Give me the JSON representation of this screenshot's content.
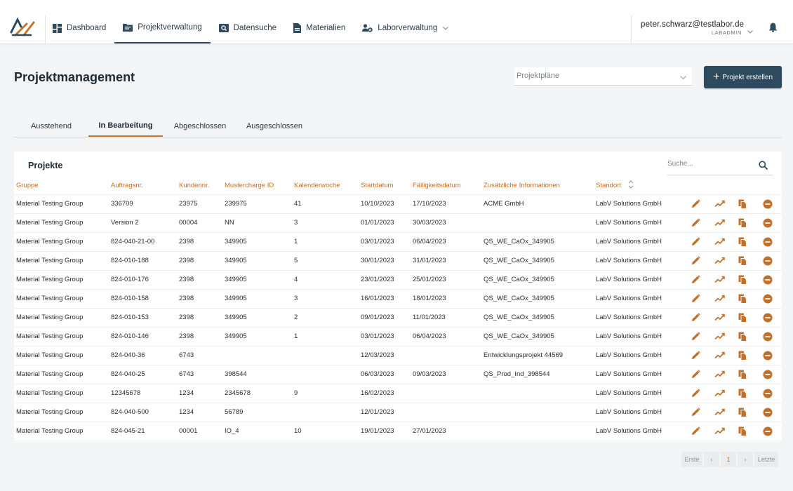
{
  "nav": {
    "items": [
      {
        "label": "Dashboard",
        "icon": "dashboard-icon"
      },
      {
        "label": "Projektverwaltung",
        "icon": "folder-icon",
        "active": true
      },
      {
        "label": "Datensuche",
        "icon": "search-box-icon"
      },
      {
        "label": "Materialien",
        "icon": "document-icon"
      },
      {
        "label": "Laborverwaltung",
        "icon": "users-gear-icon"
      }
    ]
  },
  "user": {
    "email": "peter.schwarz@testlabor.de",
    "role": "LABADMIN"
  },
  "page": {
    "title": "Projektmanagement"
  },
  "plan_select": {
    "placeholder": "Projektpläne"
  },
  "create_button": {
    "label": "Projekt erstellen"
  },
  "tabs": [
    "Ausstehend",
    "In Bearbeitung",
    "Abgeschlossen",
    "Ausgeschlossen"
  ],
  "active_tab": "In Bearbeitung",
  "projects": {
    "title": "Projekte",
    "search_placeholder": "Suche...",
    "columns": [
      "Gruppe",
      "Auftragsnr.",
      "Kundennr.",
      "Mustercharge ID",
      "Kalenderwoche",
      "Startdatum",
      "Fälligkeitsdatum",
      "Zusätzliche Informationen",
      "Standort"
    ],
    "rows": [
      [
        "Material Testing Group",
        "336709",
        "23975",
        "239975",
        "41",
        "10/10/2023",
        "17/10/2023",
        "ACME GmbH",
        "LabV Solutions GmbH"
      ],
      [
        "Material Testing Group",
        "Version 2",
        "00004",
        "NN",
        "3",
        "01/01/2023",
        "30/03/2023",
        "",
        "LabV Solutions GmbH"
      ],
      [
        "Material Testing Group",
        "824-040-21-00",
        "2398",
        "349905",
        "1",
        "03/01/2023",
        "06/04/2023",
        "QS_WE_CaOx_349905",
        "LabV Solutions GmbH"
      ],
      [
        "Material Testing Group",
        "824-010-188",
        "2398",
        "349905",
        "5",
        "30/01/2023",
        "31/01/2023",
        "QS_WE_CaOx_349905",
        "LabV Solutions GmbH"
      ],
      [
        "Material Testing Group",
        "824-010-176",
        "2398",
        "349905",
        "4",
        "23/01/2023",
        "25/01/2023",
        "QS_WE_CaOx_349905",
        "LabV Solutions GmbH"
      ],
      [
        "Material Testing Group",
        "824-010-158",
        "2398",
        "349905",
        "3",
        "16/01/2023",
        "18/01/2023",
        "QS_WE_CaOx_349905",
        "LabV Solutions GmbH"
      ],
      [
        "Material Testing Group",
        "824-010-153",
        "2398",
        "349905",
        "2",
        "09/01/2023",
        "11/01/2023",
        "QS_WE_CaOx_349905",
        "LabV Solutions GmbH"
      ],
      [
        "Material Testing Group",
        "824-010-146",
        "2398",
        "349905",
        "1",
        "03/01/2023",
        "06/04/2023",
        "QS_WE_CaOx_349905",
        "LabV Solutions GmbH"
      ],
      [
        "Material Testing Group",
        "824-040-36",
        "6743",
        "",
        "",
        "12/03/2023",
        "",
        "Entwicklungsprojekt 44569",
        "LabV Solutions GmbH"
      ],
      [
        "Material Testing Group",
        "824-040-25",
        "6743",
        "398544",
        "",
        "06/03/2023",
        "09/03/2023",
        "QS_Prod_Ind_398544",
        "LabV Solutions GmbH"
      ],
      [
        "Material Testing Group",
        "12345678",
        "1234",
        "2345678",
        "9",
        "16/02/2023",
        "",
        "",
        "LabV Solutions GmbH"
      ],
      [
        "Material Testing Group",
        "824-040-500",
        "1234",
        "56789",
        "",
        "12/01/2023",
        "",
        "",
        "LabV Solutions GmbH"
      ],
      [
        "Material Testing Group",
        "824-045-21",
        "00001",
        "IO_4",
        "10",
        "19/01/2023",
        "27/01/2023",
        "",
        "LabV Solutions GmbH"
      ]
    ]
  },
  "pagination": {
    "first": "Erste",
    "prev": "‹",
    "current": "1",
    "next": "›",
    "last": "Letzte"
  },
  "colors": {
    "accent": "#c0702a",
    "primary": "#2d4a5e",
    "background": "#f3f4f6"
  }
}
